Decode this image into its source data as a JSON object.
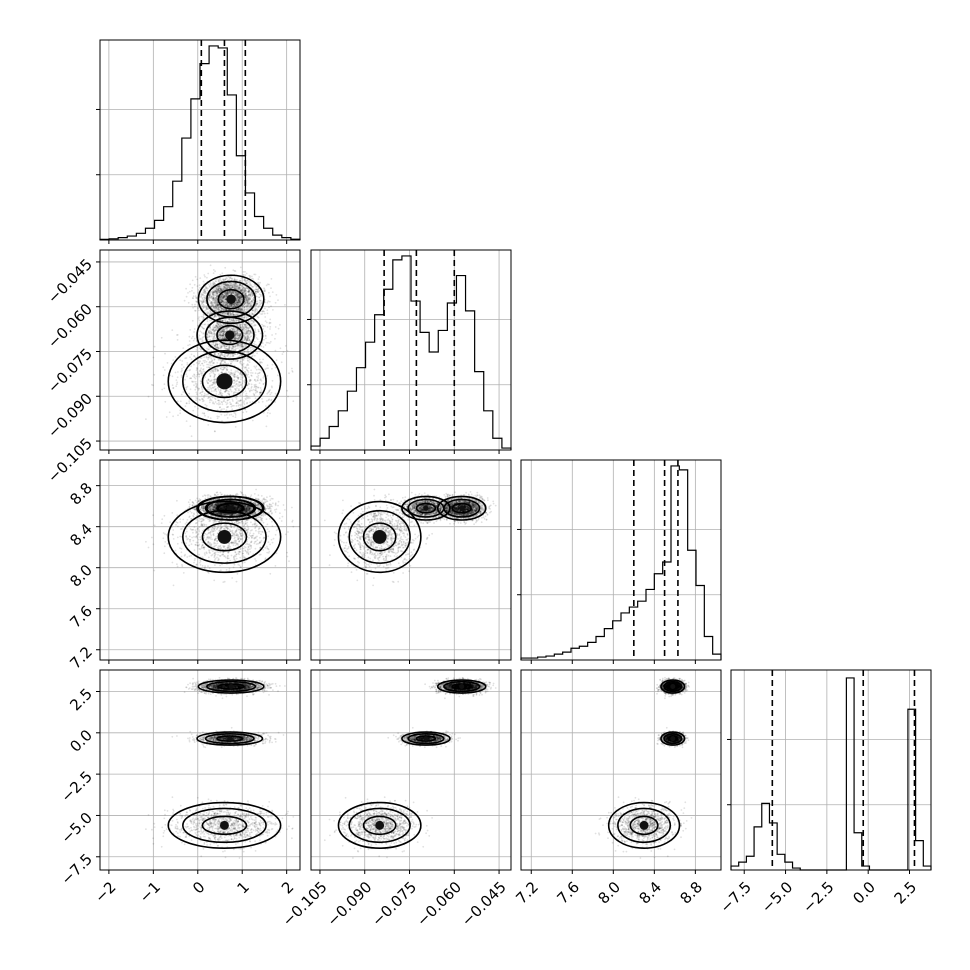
{
  "chart_data": {
    "type": "corner",
    "parameters": [
      {
        "range": [
          -2.2,
          2.3
        ],
        "ticks": [
          -2,
          -1,
          0,
          1,
          2
        ],
        "tick_labels": [
          "−2",
          "−1",
          "0",
          "1",
          "2"
        ],
        "quantiles": [
          0.08,
          0.6,
          1.07
        ],
        "hist": [
          0.003,
          0.006,
          0.012,
          0.02,
          0.034,
          0.06,
          0.1,
          0.17,
          0.3,
          0.52,
          0.72,
          0.9,
          0.99,
          0.98,
          0.74,
          0.43,
          0.24,
          0.12,
          0.06,
          0.025,
          0.012,
          0.004
        ]
      },
      {
        "range": [
          -0.108,
          -0.041
        ],
        "ticks": [
          -0.105,
          -0.09,
          -0.075,
          -0.06,
          -0.045
        ],
        "tick_labels": [
          "−0.105",
          "−0.090",
          "−0.075",
          "−0.060",
          "−0.045"
        ],
        "quantiles": [
          -0.0835,
          -0.0727,
          -0.06
        ],
        "hist": [
          0.02,
          0.06,
          0.12,
          0.2,
          0.3,
          0.42,
          0.55,
          0.69,
          0.82,
          0.97,
          0.99,
          0.76,
          0.6,
          0.5,
          0.61,
          0.75,
          0.89,
          0.71,
          0.4,
          0.2,
          0.06,
          0.01
        ]
      },
      {
        "range": [
          7.1,
          9.05
        ],
        "ticks": [
          7.2,
          7.6,
          8.0,
          8.4,
          8.8
        ],
        "tick_labels": [
          "7.2",
          "7.6",
          "8.0",
          "8.4",
          "8.8"
        ],
        "quantiles": [
          8.2,
          8.5,
          8.63
        ],
        "hist": [
          0.01,
          0.01,
          0.015,
          0.02,
          0.03,
          0.04,
          0.06,
          0.07,
          0.09,
          0.12,
          0.16,
          0.2,
          0.24,
          0.27,
          0.3,
          0.36,
          0.44,
          0.5,
          0.99,
          0.97,
          0.56,
          0.38,
          0.12,
          0.03
        ]
      },
      {
        "range": [
          -8.3,
          3.8
        ],
        "ticks": [
          -7.5,
          -5.0,
          -2.5,
          0.0,
          2.5
        ],
        "tick_labels": [
          "−7.5",
          "−5.0",
          "−2.5",
          "0.0",
          "2.5"
        ],
        "quantiles": [
          -5.8,
          -0.3,
          2.8
        ],
        "hist": [
          0.02,
          0.04,
          0.07,
          0.22,
          0.34,
          0.24,
          0.08,
          0.04,
          0.01,
          0.0,
          0.0,
          0.0,
          0.0,
          0.0,
          0.0,
          0.98,
          0.19,
          0.02,
          0.0,
          0.0,
          0.0,
          0.0,
          0.0,
          0.82,
          0.15,
          0.02
        ]
      }
    ],
    "clusters": [
      {
        "weight": 0.5,
        "mean": [
          0.75,
          -0.0575,
          8.58,
          2.8
        ],
        "sd": [
          0.32,
          0.0035,
          0.05,
          0.17
        ]
      },
      {
        "weight": 0.3,
        "mean": [
          0.72,
          -0.0695,
          8.58,
          -0.35
        ],
        "sd": [
          0.32,
          0.0035,
          0.05,
          0.17
        ]
      },
      {
        "weight": 0.2,
        "mean": [
          0.6,
          -0.085,
          8.3,
          -5.6
        ],
        "sd": [
          0.55,
          0.006,
          0.15,
          0.6
        ]
      }
    ],
    "grid": true,
    "colors": {
      "points": "#000000",
      "lines": "#000000",
      "grid": "#b0b0b0"
    }
  }
}
